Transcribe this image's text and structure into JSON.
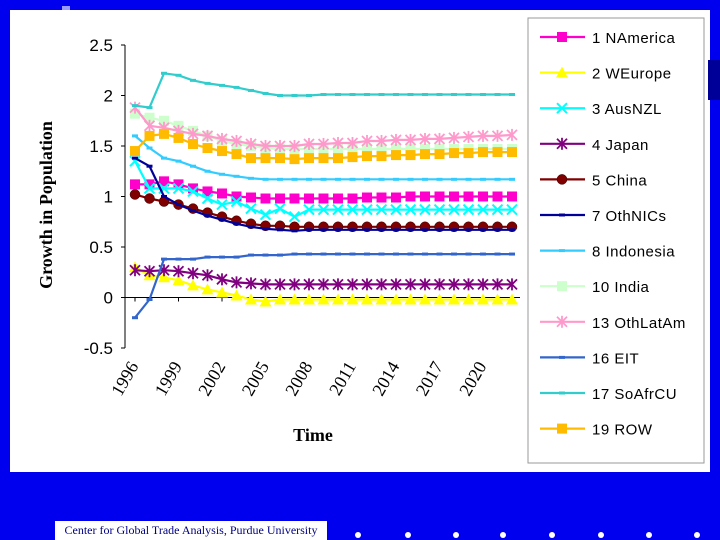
{
  "footer": {
    "caption": "Center for Global Trade Analysis, Purdue University"
  },
  "chart_data": {
    "type": "line",
    "title": "",
    "xlabel": "Time",
    "ylabel": "Growth in Population",
    "ylim": [
      -0.5,
      2.5
    ],
    "yticks": [
      "2.5",
      "2",
      "1.5",
      "1",
      "0.5",
      "0",
      "-0.5"
    ],
    "ytick_values": [
      2.5,
      2,
      1.5,
      1,
      0.5,
      0,
      -0.5
    ],
    "x": [
      1996,
      1997,
      1998,
      1999,
      2000,
      2001,
      2002,
      2003,
      2004,
      2005,
      2006,
      2007,
      2008,
      2009,
      2010,
      2011,
      2012,
      2013,
      2014,
      2015,
      2016,
      2017,
      2018,
      2019,
      2020,
      2021,
      2022
    ],
    "xticks": [
      "1996",
      "1999",
      "2002",
      "2005",
      "2008",
      "2011",
      "2014",
      "2017",
      "2020"
    ],
    "legend_position": "right",
    "series": [
      {
        "name": "1 NAmerica",
        "color": "#ff00cc",
        "marker": "square",
        "values": [
          1.12,
          1.12,
          1.15,
          1.12,
          1.08,
          1.05,
          1.03,
          1.0,
          0.99,
          0.98,
          0.98,
          0.98,
          0.98,
          0.98,
          0.98,
          0.98,
          0.99,
          0.99,
          0.99,
          1.0,
          1.0,
          1.0,
          1.0,
          1.0,
          1.0,
          1.0,
          1.0
        ]
      },
      {
        "name": "2 WEurope",
        "color": "#ffff00",
        "marker": "triangle",
        "values": [
          0.3,
          0.22,
          0.2,
          0.17,
          0.12,
          0.08,
          0.05,
          0.02,
          -0.02,
          -0.04,
          -0.02,
          -0.02,
          -0.02,
          -0.02,
          -0.02,
          -0.02,
          -0.02,
          -0.02,
          -0.02,
          -0.02,
          -0.02,
          -0.02,
          -0.02,
          -0.02,
          -0.02,
          -0.02,
          -0.02
        ]
      },
      {
        "name": "3 AusNZL",
        "color": "#00ffff",
        "marker": "x",
        "values": [
          1.35,
          1.08,
          1.08,
          1.08,
          1.05,
          0.98,
          0.92,
          0.95,
          0.88,
          0.82,
          0.88,
          0.8,
          0.87,
          0.87,
          0.87,
          0.87,
          0.87,
          0.87,
          0.87,
          0.87,
          0.87,
          0.87,
          0.87,
          0.87,
          0.87,
          0.87,
          0.87
        ]
      },
      {
        "name": "4 Japan",
        "color": "#800080",
        "marker": "star",
        "values": [
          0.27,
          0.26,
          0.27,
          0.26,
          0.24,
          0.22,
          0.18,
          0.15,
          0.14,
          0.13,
          0.13,
          0.13,
          0.13,
          0.13,
          0.13,
          0.13,
          0.13,
          0.13,
          0.13,
          0.13,
          0.13,
          0.13,
          0.13,
          0.13,
          0.13,
          0.13,
          0.13
        ]
      },
      {
        "name": "5 China",
        "color": "#800000",
        "marker": "circle",
        "values": [
          1.02,
          0.98,
          0.95,
          0.92,
          0.88,
          0.84,
          0.8,
          0.76,
          0.73,
          0.71,
          0.71,
          0.7,
          0.7,
          0.7,
          0.7,
          0.7,
          0.7,
          0.7,
          0.7,
          0.7,
          0.7,
          0.7,
          0.7,
          0.7,
          0.7,
          0.7,
          0.7
        ]
      },
      {
        "name": "7 OthNICs",
        "color": "#000099",
        "marker": "dash",
        "values": [
          1.38,
          1.3,
          1.0,
          0.92,
          0.86,
          0.81,
          0.77,
          0.73,
          0.7,
          0.68,
          0.67,
          0.66,
          0.67,
          0.67,
          0.67,
          0.67,
          0.67,
          0.67,
          0.67,
          0.67,
          0.67,
          0.67,
          0.67,
          0.67,
          0.67,
          0.67,
          0.67
        ]
      },
      {
        "name": "8 Indonesia",
        "color": "#33ccff",
        "marker": "dash",
        "values": [
          1.6,
          1.48,
          1.38,
          1.35,
          1.3,
          1.25,
          1.22,
          1.2,
          1.18,
          1.17,
          1.17,
          1.17,
          1.17,
          1.17,
          1.17,
          1.17,
          1.17,
          1.17,
          1.17,
          1.17,
          1.17,
          1.17,
          1.17,
          1.17,
          1.17,
          1.17,
          1.17
        ]
      },
      {
        "name": "10 India",
        "color": "#ccffcc",
        "marker": "square",
        "values": [
          1.82,
          1.78,
          1.75,
          1.7,
          1.65,
          1.6,
          1.55,
          1.52,
          1.5,
          1.48,
          1.47,
          1.47,
          1.47,
          1.47,
          1.47,
          1.47,
          1.47,
          1.47,
          1.47,
          1.47,
          1.47,
          1.47,
          1.47,
          1.47,
          1.47,
          1.47,
          1.47
        ]
      },
      {
        "name": "13 OthLatAm",
        "color": "#ff99cc",
        "marker": "star",
        "values": [
          1.88,
          1.7,
          1.68,
          1.65,
          1.62,
          1.6,
          1.57,
          1.55,
          1.52,
          1.5,
          1.5,
          1.5,
          1.52,
          1.52,
          1.53,
          1.53,
          1.55,
          1.55,
          1.56,
          1.56,
          1.57,
          1.57,
          1.58,
          1.59,
          1.6,
          1.6,
          1.61
        ]
      },
      {
        "name": "16 EIT",
        "color": "#3366cc",
        "marker": "dash",
        "values": [
          -0.2,
          -0.02,
          0.38,
          0.38,
          0.38,
          0.4,
          0.4,
          0.4,
          0.42,
          0.42,
          0.42,
          0.43,
          0.43,
          0.43,
          0.43,
          0.43,
          0.43,
          0.43,
          0.43,
          0.43,
          0.43,
          0.43,
          0.43,
          0.43,
          0.43,
          0.43,
          0.43
        ]
      },
      {
        "name": "17 SoAfrCU",
        "color": "#33cccc",
        "marker": "dash",
        "values": [
          1.9,
          1.88,
          2.22,
          2.2,
          2.15,
          2.12,
          2.1,
          2.08,
          2.05,
          2.02,
          2.0,
          2.0,
          2.0,
          2.01,
          2.01,
          2.01,
          2.01,
          2.01,
          2.01,
          2.01,
          2.01,
          2.01,
          2.01,
          2.01,
          2.01,
          2.01,
          2.01
        ]
      },
      {
        "name": "19 ROW",
        "color": "#ffbb00",
        "marker": "square",
        "values": [
          1.45,
          1.6,
          1.62,
          1.58,
          1.52,
          1.48,
          1.45,
          1.42,
          1.38,
          1.38,
          1.38,
          1.37,
          1.38,
          1.38,
          1.38,
          1.39,
          1.4,
          1.4,
          1.41,
          1.41,
          1.42,
          1.42,
          1.43,
          1.43,
          1.44,
          1.44,
          1.44
        ]
      }
    ]
  }
}
